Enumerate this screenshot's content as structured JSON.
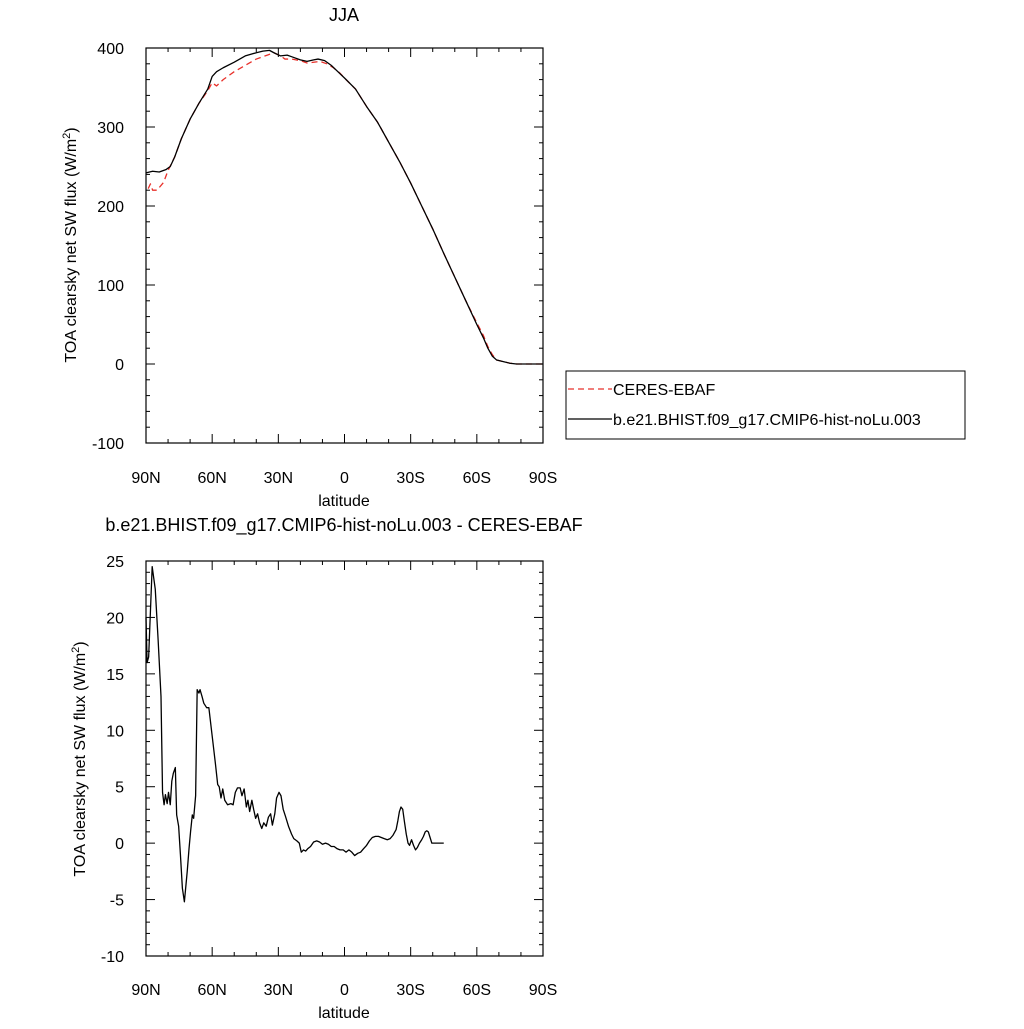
{
  "chart_data": [
    {
      "type": "line",
      "title": "JJA",
      "xlabel": "latitude",
      "ylabel": "TOA clearsky net SW flux (W/m",
      "ylabel_sup": "2",
      "ylabel_close": ")",
      "xlim": [
        90,
        -90
      ],
      "ylim": [
        -100,
        400
      ],
      "x_ticks": [
        90,
        60,
        30,
        0,
        -30,
        -60,
        -90
      ],
      "x_tick_labels": [
        "90N",
        "60N",
        "30N",
        "0",
        "30S",
        "60S",
        "90S"
      ],
      "y_ticks": [
        -100,
        0,
        100,
        200,
        300,
        400
      ],
      "y_tick_labels": [
        "-100",
        "0",
        "100",
        "200",
        "300",
        "400"
      ],
      "legend_position": "right",
      "series": [
        {
          "name": "CERES-EBAF",
          "color": "#e8302a",
          "dash": "dashed",
          "points": [
            [
              89,
              222
            ],
            [
              88,
              228
            ],
            [
              87,
              220
            ],
            [
              85,
              220
            ],
            [
              82,
              230
            ],
            [
              80,
              245
            ],
            [
              77,
              262
            ],
            [
              74,
              285
            ],
            [
              70,
              310
            ],
            [
              66,
              330
            ],
            [
              62,
              346
            ],
            [
              60,
              356
            ],
            [
              58,
              352
            ],
            [
              55,
              360
            ],
            [
              50,
              370
            ],
            [
              45,
              378
            ],
            [
              40,
              386
            ],
            [
              35,
              391
            ],
            [
              32,
              394
            ],
            [
              29,
              390
            ],
            [
              27,
              386
            ],
            [
              24,
              386
            ],
            [
              20,
              384
            ],
            [
              17,
              381
            ],
            [
              14,
              382
            ],
            [
              11,
              383
            ],
            [
              8,
              380
            ],
            [
              5,
              375
            ],
            [
              2,
              368
            ],
            [
              0,
              362
            ],
            [
              -5,
              348
            ],
            [
              -10,
              326
            ],
            [
              -15,
              306
            ],
            [
              -20,
              281
            ],
            [
              -25,
              256
            ],
            [
              -30,
              229
            ],
            [
              -35,
              200
            ],
            [
              -40,
              171
            ],
            [
              -45,
              140
            ],
            [
              -50,
              110
            ],
            [
              -55,
              80
            ],
            [
              -60,
              52
            ],
            [
              -63,
              36
            ],
            [
              -65,
              22
            ],
            [
              -67,
              12
            ],
            [
              -69,
              5
            ],
            [
              -72,
              3
            ],
            [
              -75,
              1
            ],
            [
              -78,
              0
            ],
            [
              -82,
              0
            ],
            [
              -86,
              0
            ],
            [
              -90,
              0
            ]
          ]
        },
        {
          "name": "b.e21.BHIST.f09_g17.CMIP6-hist-noLu.003",
          "color": "#000000",
          "dash": "solid",
          "points": [
            [
              90,
              242
            ],
            [
              87,
              244
            ],
            [
              84,
              243
            ],
            [
              81,
              246
            ],
            [
              79,
              250
            ],
            [
              77,
              262
            ],
            [
              74,
              285
            ],
            [
              70,
              310
            ],
            [
              66,
              330
            ],
            [
              62,
              348
            ],
            [
              60,
              364
            ],
            [
              58,
              370
            ],
            [
              55,
              375
            ],
            [
              50,
              382
            ],
            [
              45,
              390
            ],
            [
              40,
              394
            ],
            [
              37,
              396
            ],
            [
              34,
              397
            ],
            [
              32,
              394
            ],
            [
              29,
              390
            ],
            [
              26,
              391
            ],
            [
              24,
              389
            ],
            [
              20,
              385
            ],
            [
              17,
              383
            ],
            [
              14,
              385
            ],
            [
              12,
              386
            ],
            [
              9,
              384
            ],
            [
              6,
              378
            ],
            [
              3,
              370
            ],
            [
              0,
              362
            ],
            [
              -5,
              348
            ],
            [
              -10,
              326
            ],
            [
              -15,
              306
            ],
            [
              -20,
              281
            ],
            [
              -25,
              256
            ],
            [
              -30,
              229
            ],
            [
              -35,
              200
            ],
            [
              -40,
              171
            ],
            [
              -45,
              140
            ],
            [
              -50,
              110
            ],
            [
              -55,
              80
            ],
            [
              -60,
              50
            ],
            [
              -63,
              33
            ],
            [
              -65,
              20
            ],
            [
              -67,
              10
            ],
            [
              -69,
              5
            ],
            [
              -72,
              3
            ],
            [
              -75,
              1
            ],
            [
              -78,
              0
            ],
            [
              -82,
              0
            ],
            [
              -86,
              0
            ],
            [
              -90,
              0
            ]
          ]
        }
      ]
    },
    {
      "type": "line",
      "title": "b.e21.BHIST.f09_g17.CMIP6-hist-noLu.003 - CERES-EBAF",
      "xlabel": "latitude",
      "ylabel": "TOA clearsky net SW flux (W/m",
      "ylabel_sup": "2",
      "ylabel_close": ")",
      "xlim": [
        90,
        -90
      ],
      "ylim": [
        -10,
        25
      ],
      "x_ticks": [
        90,
        60,
        30,
        0,
        -30,
        -60,
        -90
      ],
      "x_tick_labels": [
        "90N",
        "60N",
        "30N",
        "0",
        "30S",
        "60S",
        "90S"
      ],
      "y_ticks": [
        -10,
        -5,
        0,
        5,
        10,
        15,
        20,
        25
      ],
      "y_tick_labels": [
        "-10",
        "-5",
        "0",
        "5",
        "10",
        "15",
        "20",
        "25"
      ],
      "series": [
        {
          "color": "#000000",
          "dash": "solid",
          "points": [
            [
              90,
              20.0
            ],
            [
              89.5,
              16.0
            ],
            [
              88.8,
              16.5
            ],
            [
              88.5,
              18.0
            ],
            [
              87.2,
              24.5
            ],
            [
              86.5,
              23.5
            ],
            [
              85.8,
              22.5
            ],
            [
              84.5,
              18.0
            ],
            [
              83.2,
              13.0
            ],
            [
              82.5,
              4.5
            ],
            [
              81.8,
              3.4
            ],
            [
              81.2,
              4.3
            ],
            [
              80.4,
              3.5
            ],
            [
              79.8,
              4.5
            ],
            [
              79.0,
              3.4
            ],
            [
              78.3,
              5.5
            ],
            [
              77.6,
              6.2
            ],
            [
              76.7,
              6.7
            ],
            [
              76.1,
              2.5
            ],
            [
              75.2,
              1.5
            ],
            [
              74.4,
              -1.0
            ],
            [
              73.5,
              -4.0
            ],
            [
              72.6,
              -5.2
            ],
            [
              71.3,
              -2.5
            ],
            [
              70.5,
              -0.5
            ],
            [
              69.8,
              1.0
            ],
            [
              69.0,
              2.5
            ],
            [
              68.4,
              2.2
            ],
            [
              67.5,
              4.2
            ],
            [
              66.8,
              13.6
            ],
            [
              66.0,
              13.3
            ],
            [
              65.5,
              13.6
            ],
            [
              64.6,
              13.0
            ],
            [
              63.8,
              12.4
            ],
            [
              62.5,
              12.0
            ],
            [
              61.5,
              12.0
            ],
            [
              60.0,
              9.5
            ],
            [
              58.5,
              7.0
            ],
            [
              57.5,
              5.2
            ],
            [
              56.8,
              5.0
            ],
            [
              56.0,
              4.0
            ],
            [
              55.2,
              4.8
            ],
            [
              54.3,
              3.8
            ],
            [
              53.0,
              3.4
            ],
            [
              51.5,
              3.5
            ],
            [
              50.5,
              3.4
            ],
            [
              49.5,
              4.5
            ],
            [
              48.5,
              4.9
            ],
            [
              47.3,
              4.9
            ],
            [
              46.5,
              4.2
            ],
            [
              45.5,
              4.8
            ],
            [
              44.5,
              3.2
            ],
            [
              43.8,
              3.8
            ],
            [
              43.0,
              2.8
            ],
            [
              42.0,
              3.8
            ],
            [
              41.2,
              3.0
            ],
            [
              40.3,
              2.2
            ],
            [
              39.4,
              2.6
            ],
            [
              38.5,
              1.8
            ],
            [
              37.5,
              1.3
            ],
            [
              36.6,
              1.8
            ],
            [
              35.5,
              1.5
            ],
            [
              34.5,
              2.3
            ],
            [
              33.5,
              2.6
            ],
            [
              32.7,
              1.6
            ],
            [
              31.6,
              2.6
            ],
            [
              30.8,
              4.0
            ],
            [
              29.7,
              4.5
            ],
            [
              28.8,
              4.2
            ],
            [
              27.8,
              3.0
            ],
            [
              26.8,
              2.4
            ],
            [
              25.4,
              1.5
            ],
            [
              24.0,
              0.8
            ],
            [
              23.0,
              0.4
            ],
            [
              21.6,
              0.2
            ],
            [
              20.5,
              0.0
            ],
            [
              19.6,
              -0.8
            ],
            [
              18.6,
              -0.6
            ],
            [
              17.6,
              -0.7
            ],
            [
              16.7,
              -0.5
            ],
            [
              15.4,
              -0.3
            ],
            [
              14.0,
              0.1
            ],
            [
              12.6,
              0.2
            ],
            [
              11.3,
              0.1
            ],
            [
              10.0,
              -0.1
            ],
            [
              8.6,
              0.0
            ],
            [
              7.3,
              -0.1
            ],
            [
              6.0,
              -0.3
            ],
            [
              4.7,
              -0.3
            ],
            [
              3.3,
              -0.5
            ],
            [
              2.0,
              -0.6
            ],
            [
              0.6,
              -0.6
            ],
            [
              -0.7,
              -0.8
            ],
            [
              -2.0,
              -0.6
            ],
            [
              -3.3,
              -0.8
            ],
            [
              -4.6,
              -1.1
            ],
            [
              -6.0,
              -0.9
            ],
            [
              -7.3,
              -0.8
            ],
            [
              -8.6,
              -0.5
            ],
            [
              -10.0,
              -0.2
            ],
            [
              -11.3,
              0.2
            ],
            [
              -12.6,
              0.5
            ],
            [
              -14.0,
              0.6
            ],
            [
              -15.4,
              0.6
            ],
            [
              -16.7,
              0.5
            ],
            [
              -18.0,
              0.4
            ],
            [
              -19.4,
              0.3
            ],
            [
              -20.7,
              0.4
            ],
            [
              -22.0,
              0.7
            ],
            [
              -23.4,
              1.2
            ],
            [
              -24.2,
              2.0
            ],
            [
              -24.9,
              2.8
            ],
            [
              -25.6,
              3.2
            ],
            [
              -26.4,
              3.0
            ],
            [
              -27.1,
              2.0
            ],
            [
              -28.0,
              0.8
            ],
            [
              -28.8,
              0.0
            ],
            [
              -29.5,
              -0.2
            ],
            [
              -30.4,
              0.3
            ],
            [
              -31.3,
              -0.2
            ],
            [
              -32.2,
              -0.6
            ],
            [
              -33.0,
              -0.4
            ],
            [
              -34.0,
              0.0
            ],
            [
              -35.0,
              0.3
            ],
            [
              -35.8,
              0.6
            ],
            [
              -36.6,
              1.0
            ],
            [
              -37.3,
              1.1
            ],
            [
              -38.0,
              1.0
            ],
            [
              -38.8,
              0.5
            ],
            [
              -39.6,
              0.0
            ],
            [
              -40.3,
              0.0
            ],
            [
              -41.5,
              0.0
            ],
            [
              -44.0,
              0.0
            ],
            [
              -45.0,
              0.0
            ]
          ]
        }
      ]
    }
  ]
}
